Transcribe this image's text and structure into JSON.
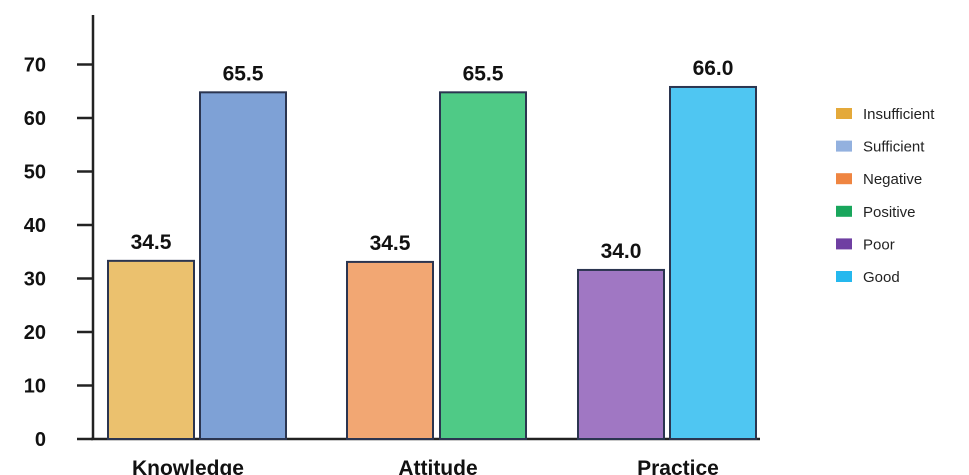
{
  "chart_data": {
    "type": "bar",
    "categories": [
      "Knowledge",
      "Attitude",
      "Practice"
    ],
    "yticks": [
      "0",
      "10",
      "20",
      "30",
      "40",
      "50",
      "60",
      "70"
    ],
    "ylim": [
      0,
      72
    ],
    "grid": false,
    "legend_position": "right",
    "bars": [
      {
        "category": 0,
        "legend": 0,
        "value": 34.5,
        "label": "34.5",
        "color": "#EBC16E",
        "height_value": 33.3
      },
      {
        "category": 0,
        "legend": 1,
        "value": 65.5,
        "label": "65.5",
        "color": "#7EA1D6",
        "height_value": 64.8
      },
      {
        "category": 1,
        "legend": 2,
        "value": 34.5,
        "label": "34.5",
        "color": "#F2A773",
        "height_value": 33.1
      },
      {
        "category": 1,
        "legend": 3,
        "value": 65.5,
        "label": "65.5",
        "color": "#4FCA86",
        "height_value": 64.8
      },
      {
        "category": 2,
        "legend": 4,
        "value": 34.0,
        "label": "34.0",
        "color": "#A077C3",
        "height_value": 31.6
      },
      {
        "category": 2,
        "legend": 5,
        "value": 66.0,
        "label": "66.0",
        "color": "#4FC6F2",
        "height_value": 65.8
      }
    ],
    "legend": [
      {
        "label": "Insufficient",
        "color": "#E4A93A"
      },
      {
        "label": "Sufficient",
        "color": "#93B1DF"
      },
      {
        "label": "Negative",
        "color": "#EF8541"
      },
      {
        "label": "Positive",
        "color": "#19A65C"
      },
      {
        "label": "Poor",
        "color": "#6F3FA2"
      },
      {
        "label": "Good",
        "color": "#25B8EE"
      }
    ]
  }
}
